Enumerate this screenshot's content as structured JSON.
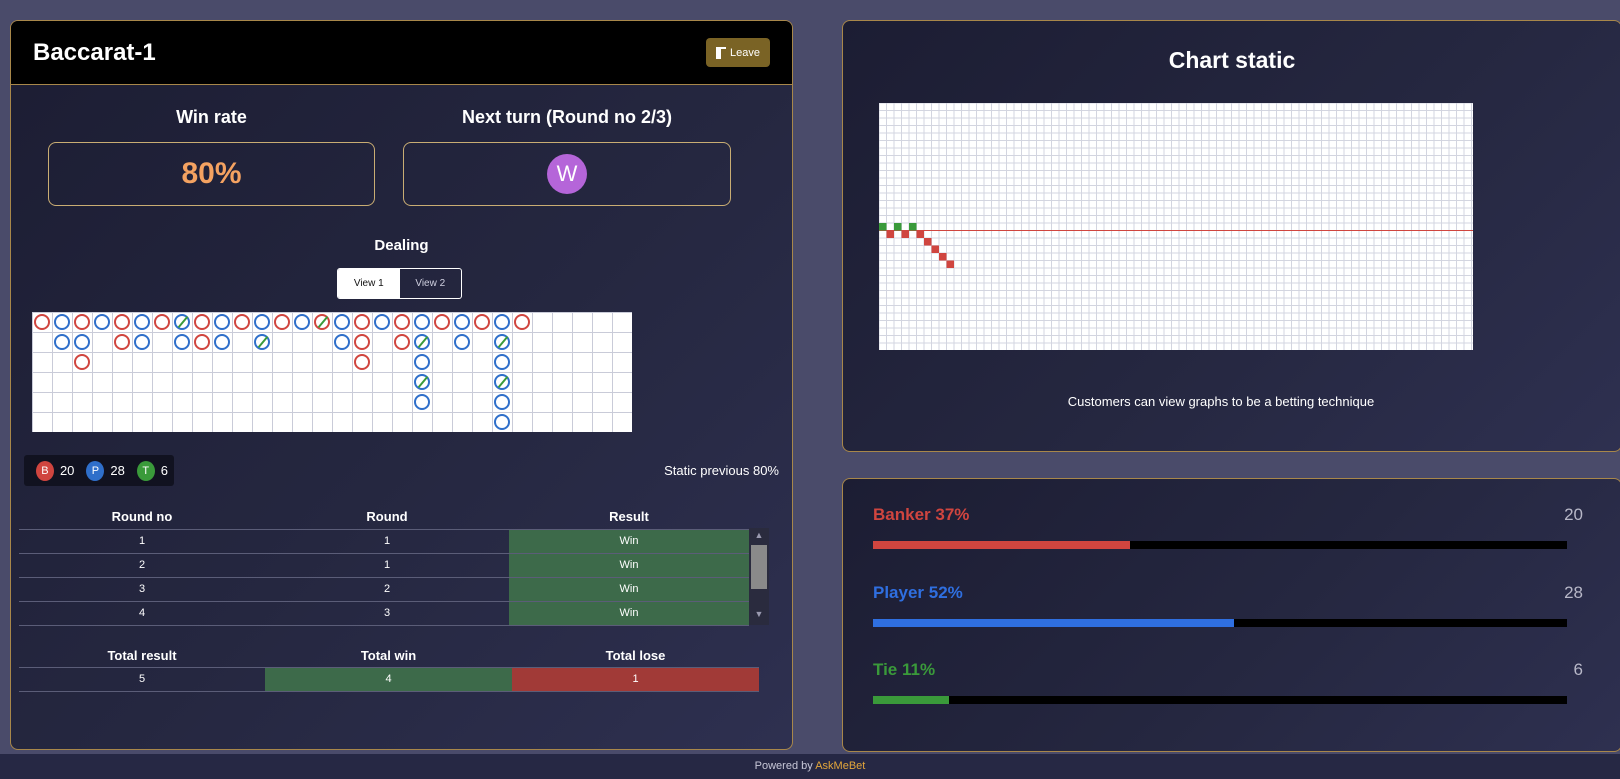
{
  "header": {
    "title": "Baccarat-1",
    "leave_label": "Leave"
  },
  "stats": {
    "win_rate_title": "Win rate",
    "win_rate_value": "80%",
    "next_turn_title": "Next turn (Round no 2/3)",
    "next_turn_avatar": "W",
    "avatar_color": "#b565d9"
  },
  "dealing": {
    "title": "Dealing",
    "view1": "View 1",
    "view2": "View 2",
    "active_view": "View 1"
  },
  "bead_road": {
    "columns": [
      [
        "R"
      ],
      [
        "B",
        "B"
      ],
      [
        "R",
        "B",
        "R"
      ],
      [
        "B"
      ],
      [
        "R",
        "R"
      ],
      [
        "B",
        "B"
      ],
      [
        "R"
      ],
      [
        "B/",
        "B"
      ],
      [
        "R",
        "R"
      ],
      [
        "B",
        "B"
      ],
      [
        "R"
      ],
      [
        "B",
        "B/"
      ],
      [
        "R"
      ],
      [
        "B"
      ],
      [
        "R/"
      ],
      [
        "B",
        "B"
      ],
      [
        "R",
        "R",
        "R"
      ],
      [
        "B"
      ],
      [
        "R",
        "R"
      ],
      [
        "B",
        "B/",
        "B",
        "B/",
        "B"
      ],
      [
        "R"
      ],
      [
        "B",
        "B"
      ],
      [
        "R"
      ],
      [
        "B",
        "B/",
        "B",
        "B/",
        "B",
        "B"
      ],
      [
        "R"
      ]
    ]
  },
  "counters": {
    "banker_letter": "B",
    "banker": "20",
    "player_letter": "P",
    "player": "28",
    "tie_letter": "T",
    "tie": "6"
  },
  "static_previous": "Static previous 80%",
  "rounds_table": {
    "headers": [
      "Round no",
      "Round",
      "Result"
    ],
    "rows": [
      {
        "round_no": "1",
        "round": "1",
        "result": "Win"
      },
      {
        "round_no": "2",
        "round": "1",
        "result": "Win"
      },
      {
        "round_no": "3",
        "round": "2",
        "result": "Win"
      },
      {
        "round_no": "4",
        "round": "3",
        "result": "Win"
      }
    ]
  },
  "totals_table": {
    "headers": [
      "Total result",
      "Total win",
      "Total lose"
    ],
    "values": [
      "5",
      "4",
      "1"
    ]
  },
  "chart": {
    "title": "Chart static",
    "caption": "Customers can view graphs to be a betting technique",
    "baseline_color": "#d0453f",
    "win_color": "#3a9a3a",
    "lose_color": "#d0453f",
    "sequence": [
      "W",
      "L",
      "W",
      "L",
      "W",
      "L",
      "L",
      "L",
      "L",
      "L"
    ]
  },
  "bars": [
    {
      "label": "Banker 37%",
      "count": "20",
      "percent": 37,
      "color": "#d0453f"
    },
    {
      "label": "Player 52%",
      "count": "28",
      "percent": 52,
      "color": "#2f6fe0"
    },
    {
      "label": "Tie 11%",
      "count": "6",
      "percent": 11,
      "color": "#3a9a3a"
    }
  ],
  "footer": {
    "prefix": "Powered by ",
    "brand": "AskMeBet"
  }
}
